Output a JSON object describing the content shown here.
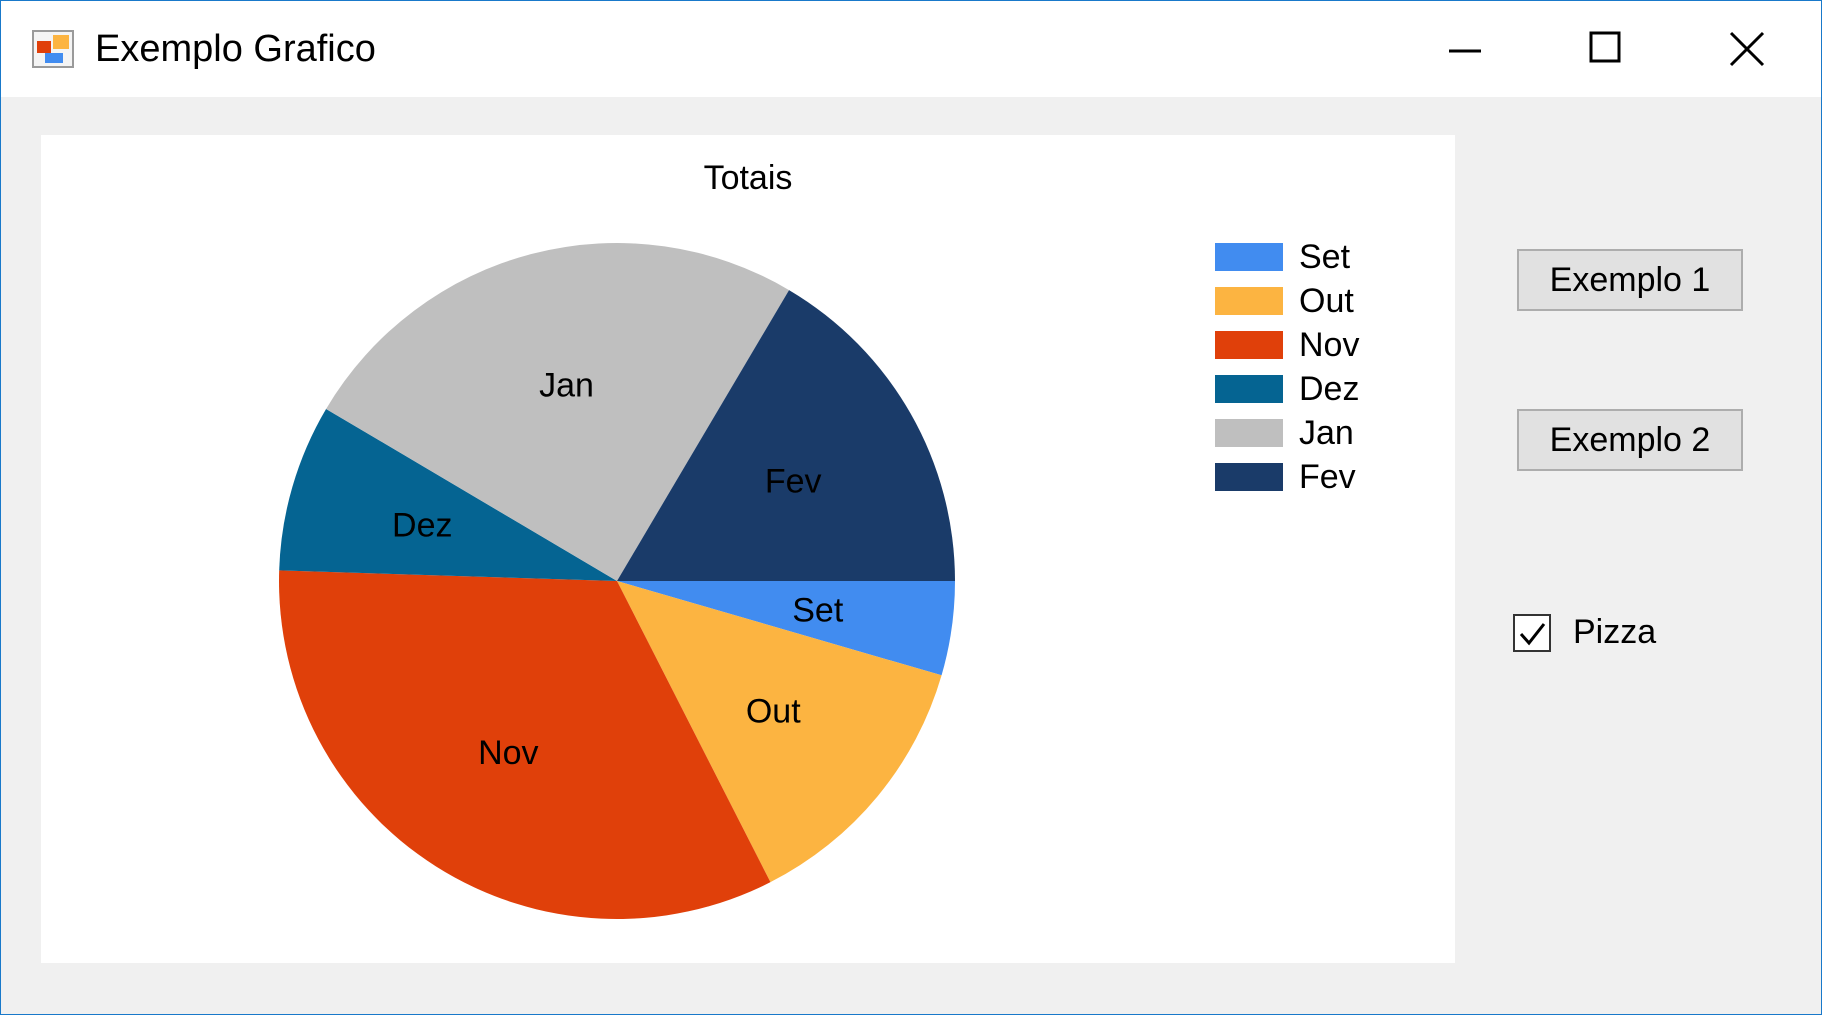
{
  "window": {
    "title": "Exemplo Grafico"
  },
  "chart_data": {
    "type": "pie",
    "title": "Totais",
    "categories": [
      "Set",
      "Out",
      "Nov",
      "Dez",
      "Jan",
      "Fev"
    ],
    "values": [
      4.5,
      13,
      33,
      8,
      25,
      16.5
    ],
    "colors": [
      "#418cf0",
      "#fcb441",
      "#e0400a",
      "#056492",
      "#bfbfbf",
      "#1a3b69"
    ],
    "data_labels": [
      "Set",
      "Out",
      "Nov",
      "Dez",
      "Jan",
      "Fev"
    ],
    "start": "3-o-clock",
    "direction": "clockwise",
    "legend_position": "top-right",
    "legend": [
      "Set",
      "Out",
      "Nov",
      "Dez",
      "Jan",
      "Fev"
    ]
  },
  "buttons": {
    "example1": "Exemplo 1",
    "example2": "Exemplo 2"
  },
  "checkbox": {
    "label": "Pizza",
    "checked": true
  }
}
